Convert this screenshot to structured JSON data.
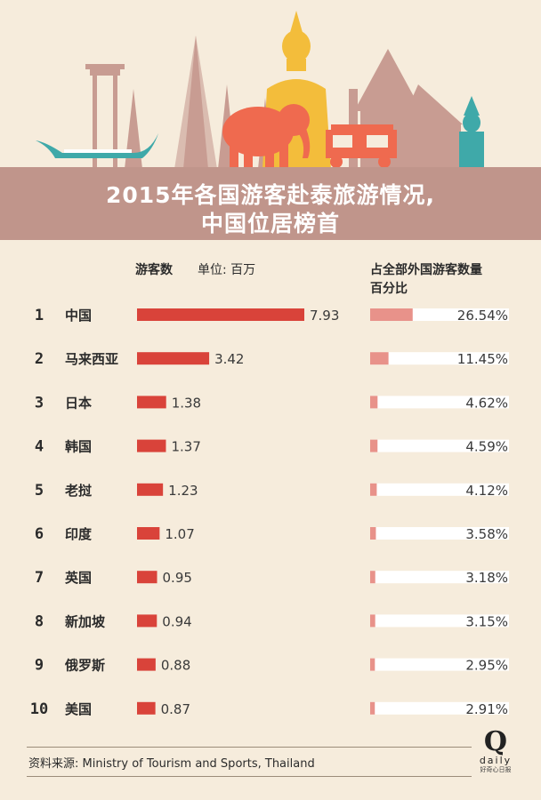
{
  "title": {
    "line1": "2015年各国游客赴泰旅游情况,",
    "line2": "中国位居榜首"
  },
  "headers": {
    "count": "游客数",
    "unit": "单位: 百万",
    "share_line1": "占全部外国游客数量",
    "share_line2": "百分比"
  },
  "colors": {
    "background": "#f6ecdc",
    "title_band": "#c0958b",
    "bar": "#d9433a",
    "share_bar": "#e8928a",
    "share_track": "#ffffff",
    "elephant": "#ef6a4f",
    "buddha": "#f3bd3b",
    "boat": "#3fa9a9",
    "temple": "#c89c92"
  },
  "chart_data": {
    "type": "bar",
    "categories": [
      "中国",
      "马来西亚",
      "日本",
      "韩国",
      "老挝",
      "印度",
      "英国",
      "新加坡",
      "俄罗斯",
      "美国"
    ],
    "ranks": [
      "1",
      "2",
      "3",
      "4",
      "5",
      "6",
      "7",
      "8",
      "9",
      "10"
    ],
    "series": [
      {
        "values": [
          7.93,
          3.42,
          1.38,
          1.37,
          1.23,
          1.07,
          0.95,
          0.94,
          0.88,
          0.87
        ],
        "labels": [
          "7.93",
          "3.42",
          "1.38",
          "1.37",
          "1.23",
          "1.07",
          "0.95",
          "0.94",
          "0.88",
          "0.87"
        ]
      },
      {
        "values": [
          26.54,
          11.45,
          4.62,
          4.59,
          4.12,
          3.58,
          3.18,
          3.15,
          2.95,
          2.91
        ],
        "labels": [
          "26.54%",
          "11.45%",
          "4.62%",
          "4.59%",
          "4.12%",
          "3.58%",
          "3.18%",
          "3.15%",
          "2.95%",
          "2.91%"
        ]
      }
    ],
    "xlim_count": [
      0,
      7.93
    ],
    "xlim_share": [
      0,
      100
    ]
  },
  "source": "资料来源: Ministry of Tourism and Sports, Thailand",
  "logo": {
    "mark": "Q",
    "word": "daily",
    "sub": "好奇心日报"
  }
}
